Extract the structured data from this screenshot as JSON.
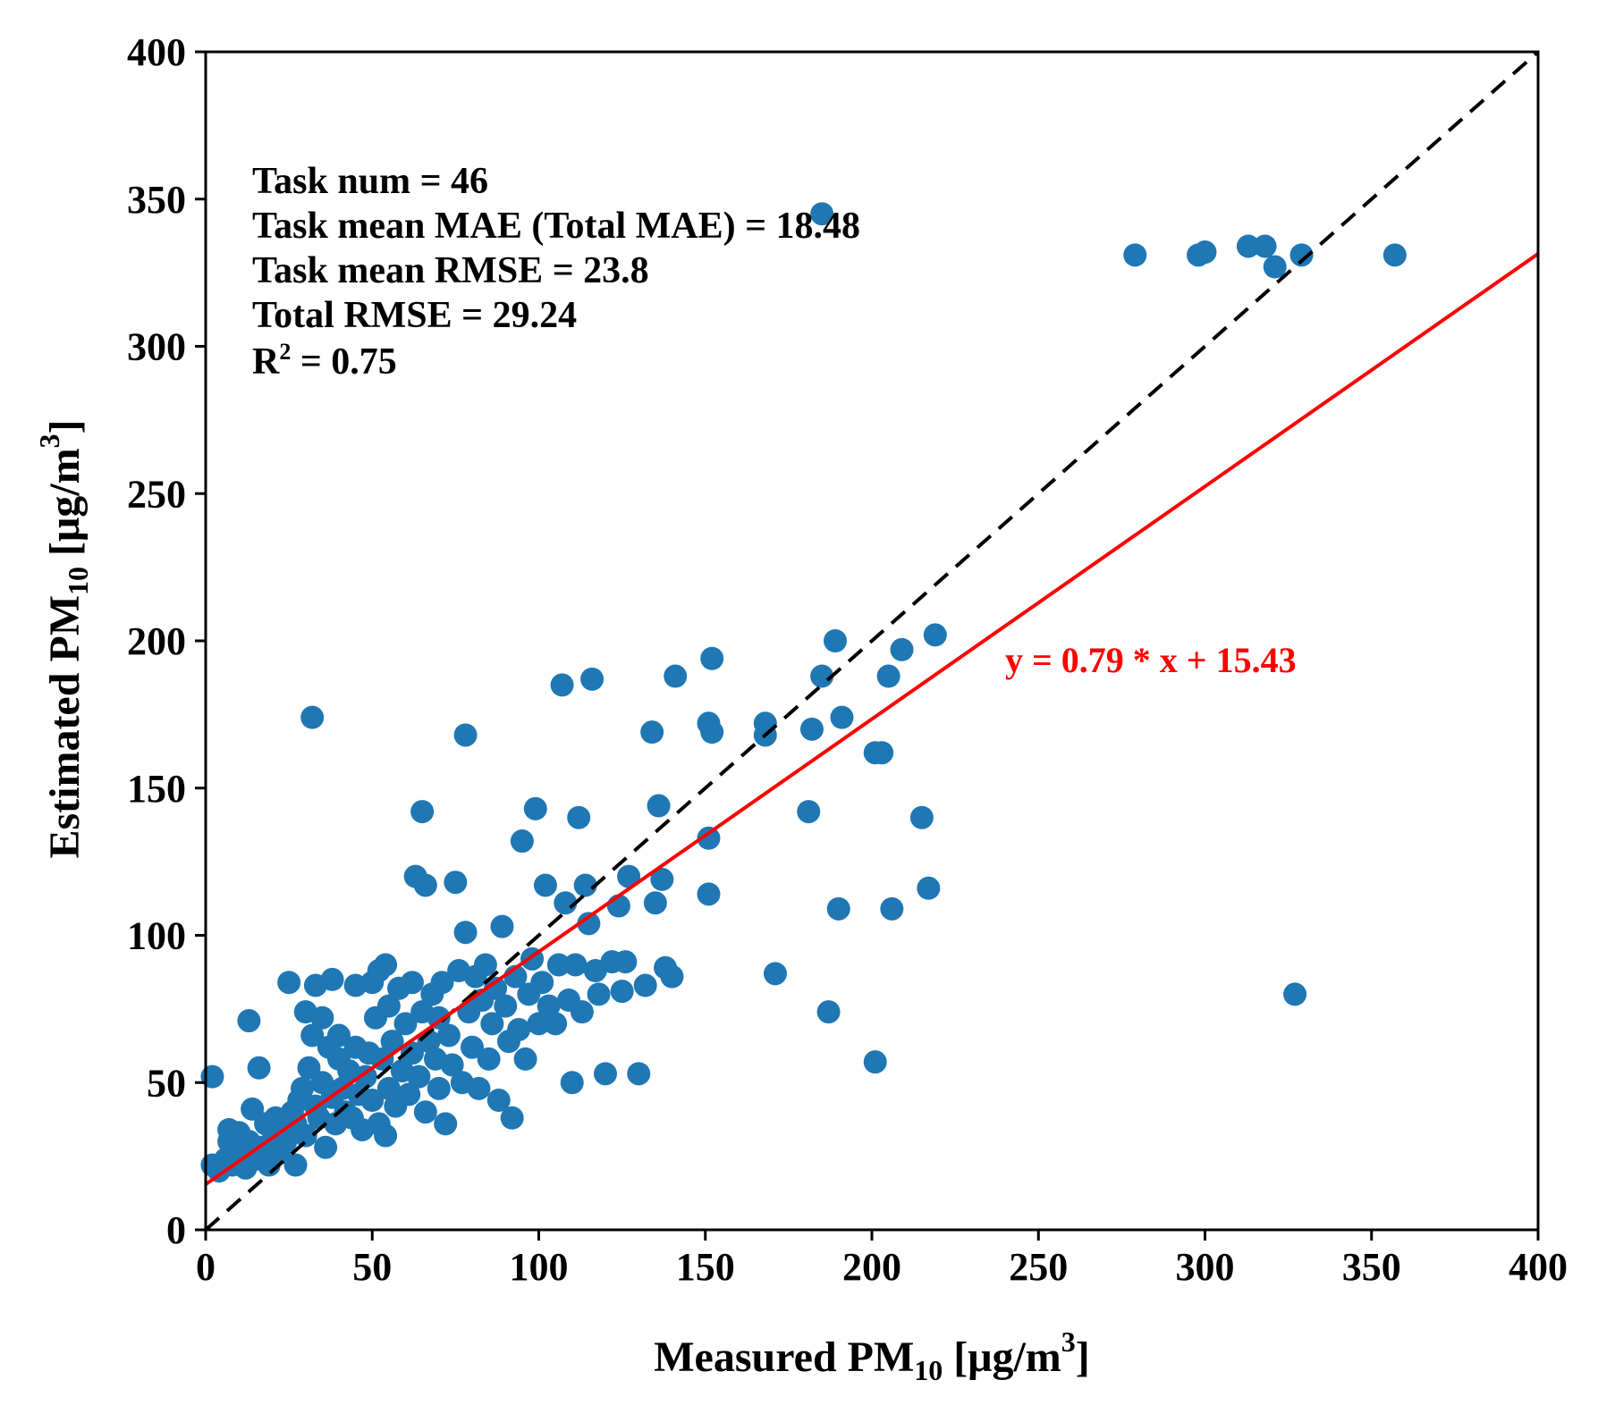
{
  "chart_data": {
    "type": "scatter",
    "xlabel_main": "Measured PM",
    "xlabel_sub": "10",
    "xlabel_unit": "[μg/m",
    "xlabel_sup": "3",
    "xlabel_close": "]",
    "ylabel_main": "Estimated PM",
    "ylabel_sub": "10",
    "ylabel_unit": "[μg/m",
    "ylabel_sup": "3",
    "ylabel_close": "]",
    "xlim": [
      0,
      400
    ],
    "ylim": [
      0,
      400
    ],
    "xticks": [
      "0",
      "50",
      "100",
      "150",
      "200",
      "250",
      "300",
      "350",
      "400"
    ],
    "yticks": [
      "0",
      "50",
      "100",
      "150",
      "200",
      "250",
      "300",
      "350",
      "400"
    ],
    "annotations": {
      "task_num": "Task num = 46",
      "task_mean_mae": "Task mean MAE (Total MAE) = 18.48",
      "task_mean_rmse": "Task mean RMSE = 23.8",
      "total_rmse": "Total RMSE = 29.24",
      "r2_prefix": "R",
      "r2_sup": "2",
      "r2_suffix": " = 0.75"
    },
    "fit_line": {
      "slope": 0.79,
      "intercept": 15.43,
      "label": "y = 0.79 * x + 15.43",
      "color": "#ff0000"
    },
    "identity_line": {
      "color": "#000000",
      "style": "dashed"
    },
    "marker_color": "#1f77b4",
    "points": [
      [
        2,
        52
      ],
      [
        2,
        22
      ],
      [
        4,
        20
      ],
      [
        6,
        24
      ],
      [
        7,
        30
      ],
      [
        7,
        34
      ],
      [
        8,
        22
      ],
      [
        9,
        28
      ],
      [
        10,
        33
      ],
      [
        11,
        26
      ],
      [
        12,
        21
      ],
      [
        13,
        30
      ],
      [
        13,
        71
      ],
      [
        14,
        41
      ],
      [
        15,
        24
      ],
      [
        16,
        55
      ],
      [
        17,
        28
      ],
      [
        18,
        36
      ],
      [
        19,
        22
      ],
      [
        20,
        30
      ],
      [
        21,
        38
      ],
      [
        22,
        26
      ],
      [
        23,
        34
      ],
      [
        24,
        30
      ],
      [
        25,
        84
      ],
      [
        26,
        40
      ],
      [
        27,
        22
      ],
      [
        27,
        36
      ],
      [
        28,
        44
      ],
      [
        29,
        48
      ],
      [
        30,
        74
      ],
      [
        30,
        32
      ],
      [
        31,
        55
      ],
      [
        32,
        66
      ],
      [
        32,
        174
      ],
      [
        33,
        83
      ],
      [
        33,
        42
      ],
      [
        34,
        38
      ],
      [
        35,
        72
      ],
      [
        35,
        50
      ],
      [
        36,
        28
      ],
      [
        37,
        62
      ],
      [
        38,
        45
      ],
      [
        38,
        85
      ],
      [
        39,
        36
      ],
      [
        40,
        58
      ],
      [
        40,
        66
      ],
      [
        41,
        48
      ],
      [
        42,
        40
      ],
      [
        43,
        54
      ],
      [
        44,
        38
      ],
      [
        45,
        62
      ],
      [
        45,
        83
      ],
      [
        46,
        46
      ],
      [
        47,
        34
      ],
      [
        48,
        52
      ],
      [
        49,
        60
      ],
      [
        50,
        84
      ],
      [
        50,
        44
      ],
      [
        51,
        72
      ],
      [
        52,
        36
      ],
      [
        52,
        88
      ],
      [
        53,
        58
      ],
      [
        54,
        90
      ],
      [
        54,
        32
      ],
      [
        55,
        48
      ],
      [
        55,
        76
      ],
      [
        56,
        64
      ],
      [
        57,
        42
      ],
      [
        58,
        82
      ],
      [
        59,
        54
      ],
      [
        60,
        70
      ],
      [
        61,
        46
      ],
      [
        62,
        84
      ],
      [
        62,
        60
      ],
      [
        63,
        120
      ],
      [
        64,
        52
      ],
      [
        65,
        74
      ],
      [
        65,
        142
      ],
      [
        66,
        117
      ],
      [
        66,
        40
      ],
      [
        67,
        64
      ],
      [
        68,
        80
      ],
      [
        69,
        58
      ],
      [
        70,
        72
      ],
      [
        70,
        48
      ],
      [
        71,
        84
      ],
      [
        72,
        36
      ],
      [
        73,
        66
      ],
      [
        74,
        56
      ],
      [
        75,
        118
      ],
      [
        76,
        88
      ],
      [
        77,
        50
      ],
      [
        78,
        101
      ],
      [
        78,
        168
      ],
      [
        79,
        74
      ],
      [
        80,
        62
      ],
      [
        81,
        86
      ],
      [
        82,
        48
      ],
      [
        83,
        78
      ],
      [
        84,
        90
      ],
      [
        85,
        58
      ],
      [
        86,
        70
      ],
      [
        87,
        82
      ],
      [
        88,
        44
      ],
      [
        89,
        103
      ],
      [
        90,
        76
      ],
      [
        91,
        64
      ],
      [
        92,
        38
      ],
      [
        93,
        86
      ],
      [
        94,
        68
      ],
      [
        95,
        132
      ],
      [
        96,
        58
      ],
      [
        97,
        80
      ],
      [
        98,
        92
      ],
      [
        99,
        143
      ],
      [
        100,
        70
      ],
      [
        101,
        84
      ],
      [
        102,
        117
      ],
      [
        103,
        76
      ],
      [
        105,
        70
      ],
      [
        106,
        90
      ],
      [
        107,
        185
      ],
      [
        108,
        111
      ],
      [
        109,
        78
      ],
      [
        110,
        50
      ],
      [
        111,
        90
      ],
      [
        112,
        140
      ],
      [
        113,
        74
      ],
      [
        114,
        117
      ],
      [
        115,
        104
      ],
      [
        116,
        187
      ],
      [
        117,
        88
      ],
      [
        118,
        80
      ],
      [
        120,
        53
      ],
      [
        122,
        91
      ],
      [
        124,
        110
      ],
      [
        125,
        81
      ],
      [
        126,
        91
      ],
      [
        127,
        120
      ],
      [
        130,
        53
      ],
      [
        132,
        83
      ],
      [
        134,
        169
      ],
      [
        135,
        111
      ],
      [
        136,
        144
      ],
      [
        137,
        119
      ],
      [
        138,
        89
      ],
      [
        140,
        86
      ],
      [
        141,
        188
      ],
      [
        151,
        172
      ],
      [
        151,
        133
      ],
      [
        151,
        114
      ],
      [
        152,
        194
      ],
      [
        152,
        169
      ],
      [
        168,
        172
      ],
      [
        168,
        168
      ],
      [
        171,
        87
      ],
      [
        181,
        142
      ],
      [
        182,
        170
      ],
      [
        185,
        188
      ],
      [
        185,
        345
      ],
      [
        187,
        74
      ],
      [
        189,
        200
      ],
      [
        190,
        109
      ],
      [
        191,
        174
      ],
      [
        201,
        162
      ],
      [
        201,
        57
      ],
      [
        203,
        162
      ],
      [
        205,
        188
      ],
      [
        206,
        109
      ],
      [
        209,
        197
      ],
      [
        215,
        140
      ],
      [
        217,
        116
      ],
      [
        219,
        202
      ],
      [
        279,
        331
      ],
      [
        298,
        331
      ],
      [
        300,
        332
      ],
      [
        313,
        334
      ],
      [
        318,
        334
      ],
      [
        321,
        327
      ],
      [
        327,
        80
      ],
      [
        329,
        331
      ],
      [
        357,
        331
      ]
    ]
  }
}
